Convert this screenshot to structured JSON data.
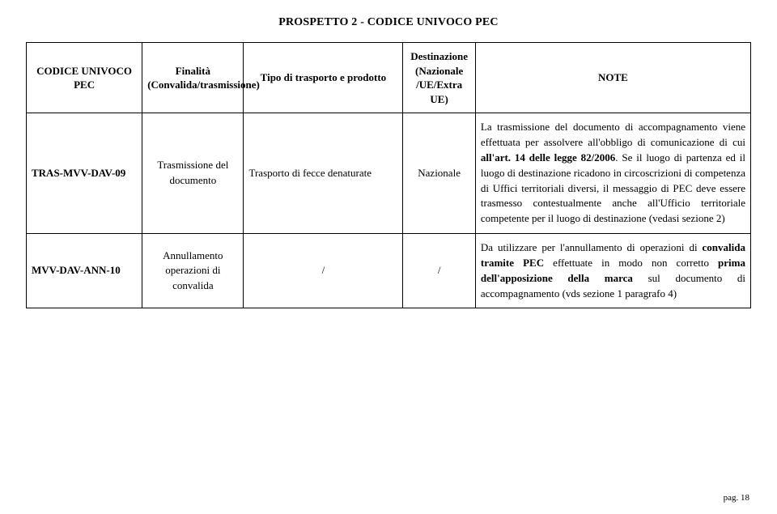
{
  "title": "PROSPETTO 2  -  CODICE UNIVOCO PEC",
  "headers": {
    "code": "CODICE UNIVOCO PEC",
    "finalita": "Finalità (Convalida/trasmissione)",
    "tipo": "Tipo di trasporto e prodotto",
    "dest": "Destinazione (Nazionale /UE/Extra UE)",
    "note": "NOTE"
  },
  "rows": [
    {
      "code": "TRAS-MVV-DAV-09",
      "finalita": "Trasmissione del documento",
      "tipo": "Trasporto di fecce denaturate",
      "dest": "Nazionale",
      "note_pre": "La trasmissione del documento di accompagnamento viene effettuata per assolvere all'obbligo di comunicazione di cui ",
      "note_bold1": "all'art. 14 delle legge 82/2006",
      "note_post": ". Se il luogo di partenza ed il luogo di destinazione ricadono in circoscrizioni di competenza di Uffici territoriali diversi, il messaggio di PEC deve essere trasmesso contestualmente anche all'Ufficio territoriale competente per il luogo di destinazione (vedasi sezione 2)"
    },
    {
      "code": "MVV-DAV-ANN-10",
      "finalita": "Annullamento operazioni di convalida",
      "tipo": "/",
      "dest": "/",
      "note_pre": "Da utilizzare per l'annullamento di operazioni di ",
      "note_bold1": "convalida tramite PEC",
      "note_mid": " effettuate in modo non corretto ",
      "note_bold2": "prima dell'apposizione della marca",
      "note_post": " sul documento di accompagnamento (vds sezione 1 paragrafo 4)"
    }
  ],
  "footer": "pag. 18"
}
